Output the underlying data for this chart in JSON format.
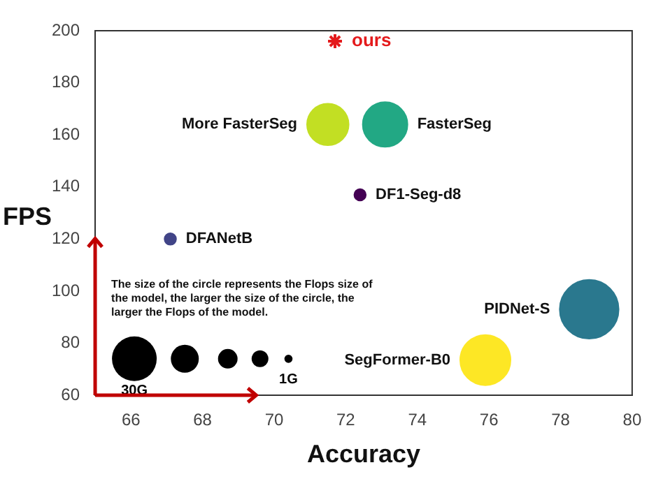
{
  "chart_data": {
    "type": "bubble",
    "xlabel": "Accuracy",
    "ylabel": "FPS",
    "xlim": [
      65,
      80
    ],
    "xticks": [
      66,
      68,
      70,
      72,
      74,
      76,
      78,
      80
    ],
    "ylim": [
      60,
      200
    ],
    "yticks": [
      60,
      80,
      100,
      120,
      140,
      160,
      180,
      200
    ],
    "grid": false,
    "legend": false,
    "size_legend": [
      {
        "value": 30,
        "label": "30G"
      },
      {
        "value": 1,
        "label": "1G"
      }
    ],
    "annotations": [
      "The size of the circle represents the Flops size of the model, the larger the size of the circle, the larger the Flops of the model."
    ],
    "series": [
      {
        "name": "ours",
        "type": "scatter",
        "marker": "cross",
        "color": "#e41a1c",
        "x": [
          71.7
        ],
        "values": [
          196
        ]
      },
      {
        "name": "More FasterSeg",
        "color": "#c2df23",
        "x": [
          71.5
        ],
        "values": [
          164
        ],
        "sizes": [
          26
        ]
      },
      {
        "name": "FasterSeg",
        "color": "#22a884",
        "x": [
          73.1
        ],
        "values": [
          164
        ],
        "sizes": [
          30
        ]
      },
      {
        "name": "DF1-Seg-d8",
        "color": "#440154",
        "x": [
          72.4
        ],
        "values": [
          137
        ],
        "sizes": [
          2
        ]
      },
      {
        "name": "DFANetB",
        "color": "#414487",
        "x": [
          67.1
        ],
        "values": [
          120
        ],
        "sizes": [
          2
        ]
      },
      {
        "name": "PIDNet-S",
        "color": "#2a788e",
        "x": [
          78.8
        ],
        "values": [
          93
        ],
        "sizes": [
          52
        ]
      },
      {
        "name": "SegFormer-B0",
        "color": "#fde725",
        "x": [
          75.9
        ],
        "values": [
          73.5
        ],
        "sizes": [
          38
        ]
      }
    ]
  }
}
